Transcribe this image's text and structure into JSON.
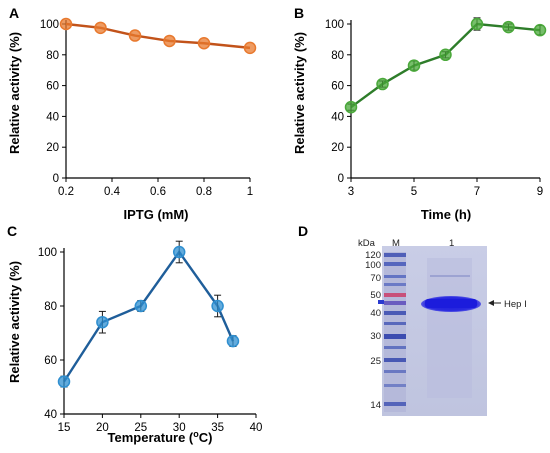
{
  "chart_data": [
    {
      "panel": "A",
      "type": "line",
      "xlabel": "IPTG (mM)",
      "ylabel": "Relative activity (%)",
      "xlim": [
        0.2,
        1
      ],
      "ylim": [
        0,
        100
      ],
      "xticks": [
        0.2,
        0.4,
        0.6,
        0.8,
        1
      ],
      "xtick_labels": [
        "0.2",
        "0.4",
        "0.6",
        "0.8",
        "1"
      ],
      "yticks": [
        0,
        20,
        40,
        60,
        80,
        100
      ],
      "ytick_labels": [
        "0",
        "20",
        "40",
        "60",
        "80",
        "100"
      ],
      "color": "#E8792E",
      "x": [
        0.2,
        0.35,
        0.5,
        0.65,
        0.8,
        1.0
      ],
      "y": [
        100,
        97.5,
        92.5,
        89,
        87.5,
        84.5
      ],
      "err": [
        0,
        0,
        0,
        0,
        0,
        0
      ]
    },
    {
      "panel": "B",
      "type": "line",
      "xlabel": "Time (h)",
      "ylabel": "Relative activity (%)",
      "xlim": [
        3,
        9
      ],
      "ylim": [
        0,
        100
      ],
      "xticks": [
        3,
        5,
        7,
        9
      ],
      "xtick_labels": [
        "3",
        "5",
        "7",
        "9"
      ],
      "yticks": [
        0,
        20,
        40,
        60,
        80,
        100
      ],
      "ytick_labels": [
        "0",
        "20",
        "40",
        "60",
        "80",
        "100"
      ],
      "color": "#4AA83A",
      "x": [
        3,
        4,
        5,
        6,
        7,
        8,
        9
      ],
      "y": [
        46,
        61,
        73,
        80,
        100,
        98,
        96
      ],
      "err": [
        2,
        2,
        3,
        2,
        4,
        2,
        3
      ]
    },
    {
      "panel": "C",
      "type": "line",
      "xlabel": "Temperature (",
      "xlabel_sup": "o",
      "xlabel_end": "C)",
      "ylabel": "Relative activity (%)",
      "xlim": [
        15,
        40
      ],
      "ylim": [
        40,
        100
      ],
      "xticks": [
        15,
        20,
        25,
        30,
        35,
        40
      ],
      "xtick_labels": [
        "15",
        "20",
        "25",
        "30",
        "35",
        "40"
      ],
      "yticks": [
        40,
        60,
        80,
        100
      ],
      "ytick_labels": [
        "40",
        "60",
        "80",
        "100"
      ],
      "color": "#2F8FD0",
      "x": [
        15,
        20,
        25,
        30,
        35,
        37
      ],
      "y": [
        52,
        74,
        80,
        100,
        80,
        67
      ],
      "err": [
        2,
        4,
        2,
        4,
        4,
        2
      ]
    }
  ],
  "gel": {
    "panel": "D",
    "kda_label": "kDa",
    "lane_labels": [
      "M",
      "1"
    ],
    "markers": [
      "120",
      "100",
      "70",
      "50",
      "40",
      "30",
      "25",
      "14"
    ],
    "band_label": "Hep I"
  }
}
